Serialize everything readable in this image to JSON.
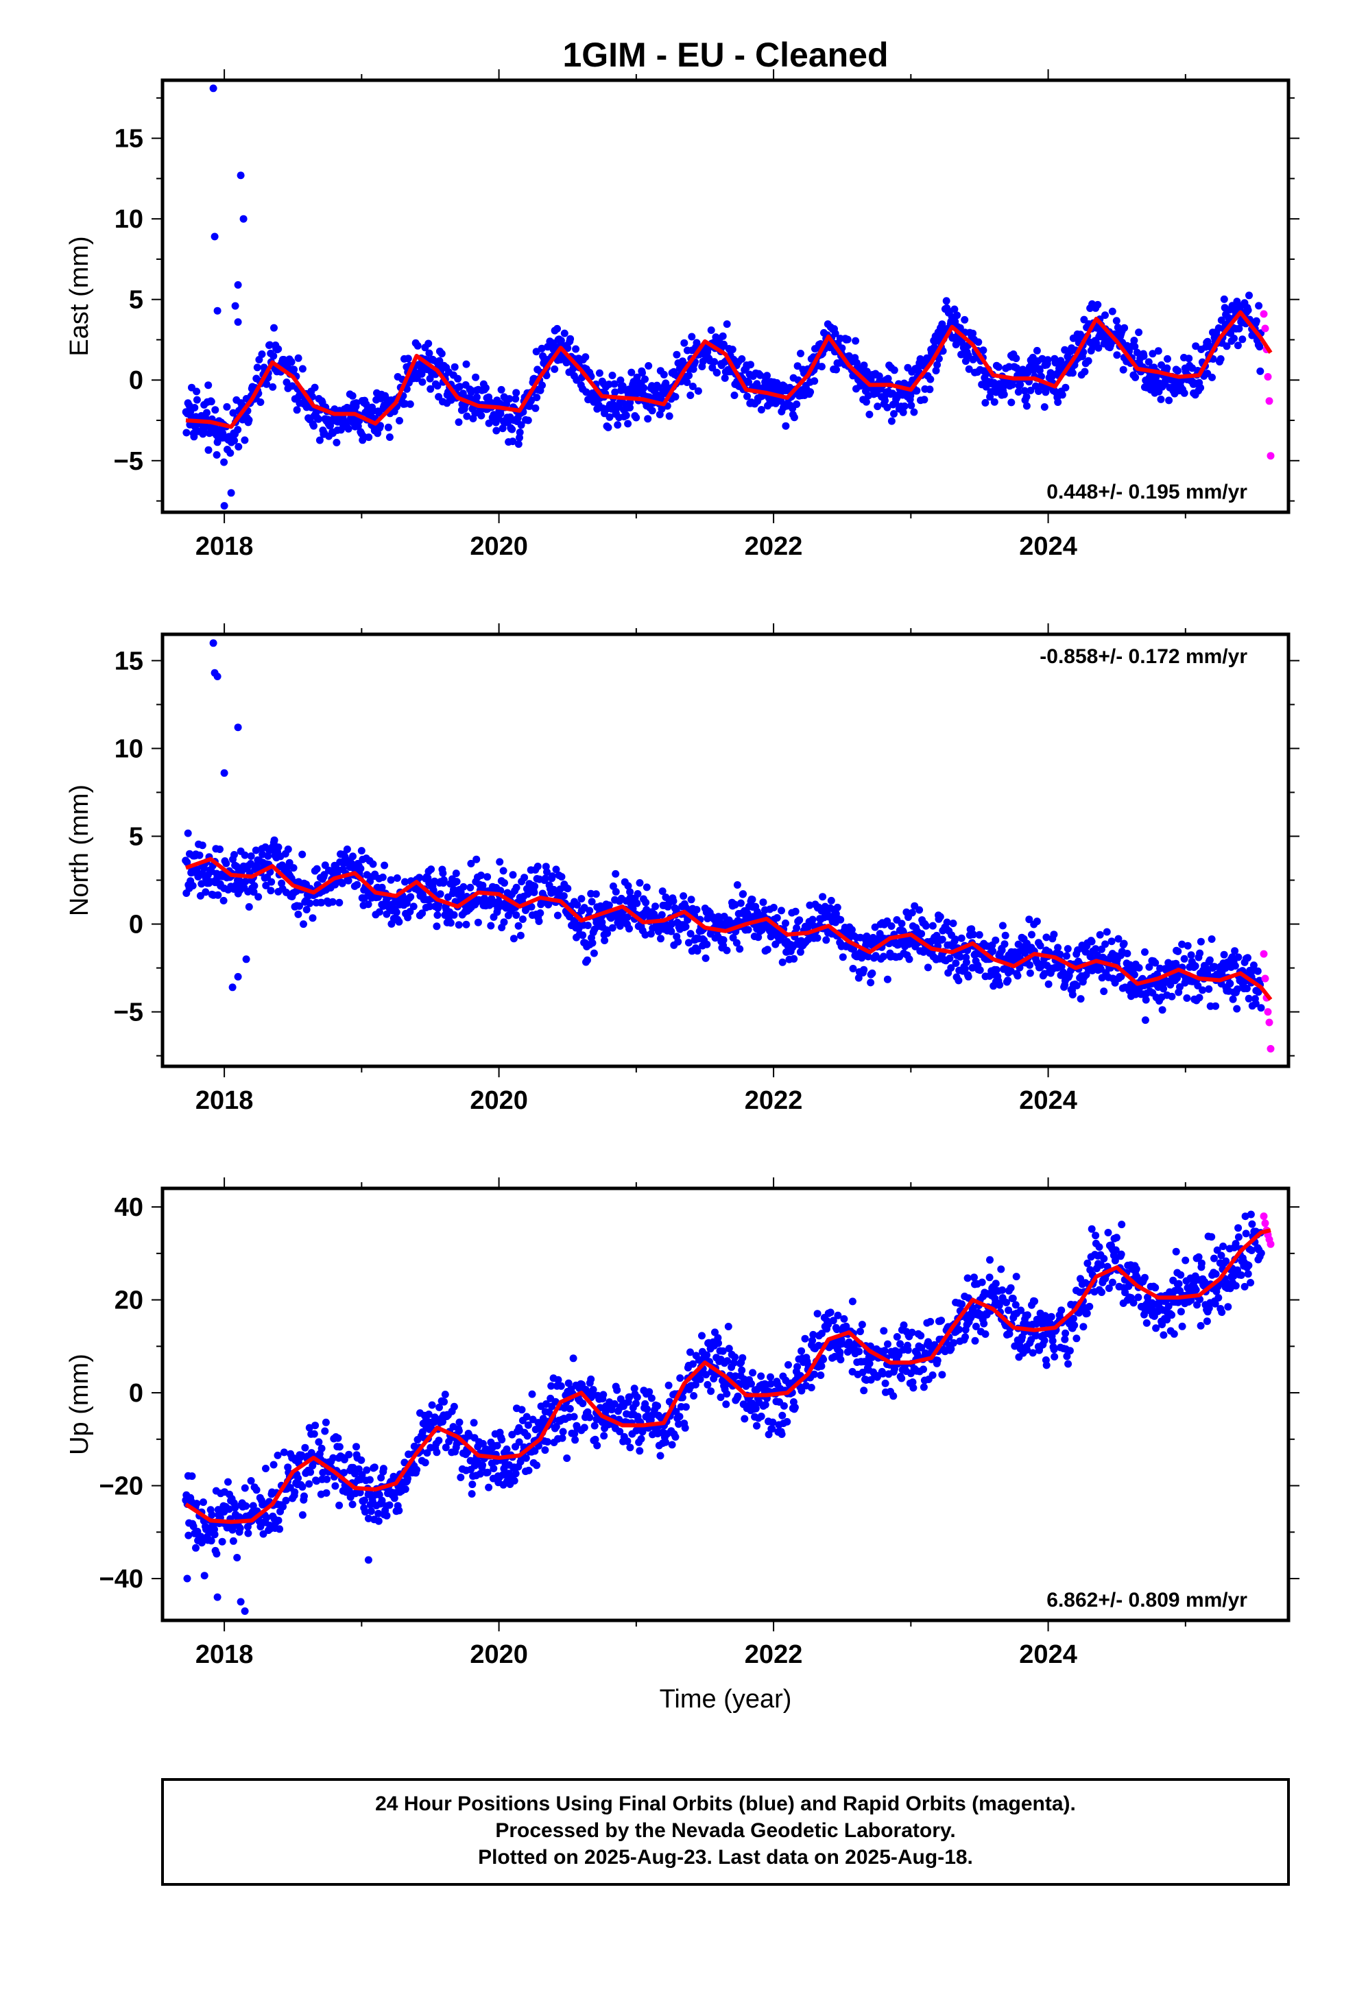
{
  "title": "1GIM  - EU - Cleaned",
  "xlabel": "Time (year)",
  "footer": [
    "24 Hour Positions Using Final Orbits (blue) and Rapid Orbits (magenta).",
    "Processed by the Nevada Geodetic Laboratory.",
    "Plotted on 2025-Aug-23. Last data on 2025-Aug-18."
  ],
  "colors": {
    "final": "#0000ff",
    "rapid": "#ff00ff",
    "fit": "#ff0000",
    "frame": "#000000"
  },
  "chart_data": [
    {
      "type": "scatter",
      "ylabel": "East (mm)",
      "rate_label": "0.448+/- 0.195 mm/yr",
      "rate_position": "bottom-right",
      "xlim": [
        2017.55,
        2025.75
      ],
      "ylim": [
        -8.2,
        18.6
      ],
      "x_ticks": [
        2018,
        2020,
        2022,
        2024
      ],
      "y_ticks": [
        -5,
        0,
        5,
        10,
        15
      ],
      "x_tick_labels": [
        "2018",
        "2020",
        "2022",
        "2024"
      ],
      "y_tick_labels": [
        "−5",
        "0",
        "5",
        "10",
        "15"
      ],
      "model_fit": {
        "name": "",
        "x": [
          2017.72,
          2017.9,
          2018.05,
          2018.2,
          2018.35,
          2018.5,
          2018.65,
          2018.8,
          2018.95,
          2019.1,
          2019.25,
          2019.4,
          2019.55,
          2019.7,
          2019.85,
          2020.0,
          2020.15,
          2020.3,
          2020.45,
          2020.6,
          2020.75,
          2020.9,
          2021.05,
          2021.2,
          2021.35,
          2021.5,
          2021.65,
          2021.8,
          2021.95,
          2022.1,
          2022.25,
          2022.4,
          2022.55,
          2022.7,
          2022.85,
          2023.0,
          2023.15,
          2023.3,
          2023.45,
          2023.6,
          2023.75,
          2023.9,
          2024.05,
          2024.2,
          2024.35,
          2024.5,
          2024.65,
          2024.8,
          2024.95,
          2025.1,
          2025.25,
          2025.4,
          2025.55,
          2025.62
        ],
        "y": [
          -2.5,
          -2.6,
          -2.9,
          -1.2,
          1.1,
          0.2,
          -1.6,
          -2.1,
          -2.1,
          -2.7,
          -1.4,
          1.5,
          0.6,
          -1.1,
          -1.6,
          -1.7,
          -1.9,
          0.2,
          2.0,
          0.6,
          -1.0,
          -1.1,
          -1.2,
          -1.5,
          0.6,
          2.4,
          1.6,
          -0.6,
          -0.8,
          -1.1,
          0.3,
          2.7,
          0.9,
          -0.3,
          -0.3,
          -0.6,
          1.1,
          3.3,
          2.2,
          0.3,
          0.1,
          0.1,
          -0.4,
          1.5,
          3.8,
          2.4,
          0.7,
          0.5,
          0.2,
          0.3,
          2.6,
          4.2,
          2.6,
          1.7
        ]
      },
      "final_orbits": {
        "name": "",
        "x_start": 2017.72,
        "x_end": 2025.55,
        "trend": 0.45,
        "seasonal_amplitude": 2.0,
        "scatter": 1.1,
        "point_count": 1600
      },
      "rapid_orbits": {
        "name": "",
        "x": [
          2025.57,
          2025.58,
          2025.59,
          2025.6,
          2025.61,
          2025.62
        ],
        "y": [
          4.1,
          3.2,
          1.9,
          0.2,
          -1.3,
          -4.7
        ]
      },
      "outliers": {
        "x": [
          2017.92,
          2017.93,
          2017.95,
          2018.0,
          2018.05,
          2018.12,
          2018.1,
          2018.14,
          2018.08,
          2018.1
        ],
        "y": [
          18.1,
          8.9,
          4.3,
          -7.8,
          -7.0,
          12.7,
          5.9,
          10.0,
          4.6,
          3.6
        ]
      }
    },
    {
      "type": "scatter",
      "ylabel": "North (mm)",
      "rate_label": "-0.858+/- 0.172 mm/yr",
      "rate_position": "top-right",
      "xlim": [
        2017.55,
        2025.75
      ],
      "ylim": [
        -8.1,
        16.5
      ],
      "x_ticks": [
        2018,
        2020,
        2022,
        2024
      ],
      "y_ticks": [
        -5,
        0,
        5,
        10,
        15
      ],
      "x_tick_labels": [
        "2018",
        "2020",
        "2022",
        "2024"
      ],
      "y_tick_labels": [
        "−5",
        "0",
        "5",
        "10",
        "15"
      ],
      "model_fit": {
        "name": "",
        "x": [
          2017.72,
          2017.9,
          2018.05,
          2018.2,
          2018.35,
          2018.5,
          2018.65,
          2018.8,
          2018.95,
          2019.1,
          2019.25,
          2019.4,
          2019.55,
          2019.7,
          2019.85,
          2020.0,
          2020.15,
          2020.3,
          2020.45,
          2020.6,
          2020.75,
          2020.9,
          2021.05,
          2021.2,
          2021.35,
          2021.5,
          2021.65,
          2021.8,
          2021.95,
          2022.1,
          2022.25,
          2022.4,
          2022.55,
          2022.7,
          2022.85,
          2023.0,
          2023.15,
          2023.3,
          2023.45,
          2023.6,
          2023.75,
          2023.9,
          2024.05,
          2024.2,
          2024.35,
          2024.5,
          2024.65,
          2024.8,
          2024.95,
          2025.1,
          2025.25,
          2025.4,
          2025.55,
          2025.62
        ],
        "y": [
          3.2,
          3.7,
          2.8,
          2.7,
          3.3,
          2.2,
          1.8,
          2.6,
          2.9,
          1.8,
          1.6,
          2.4,
          1.4,
          1.0,
          1.8,
          1.7,
          1.0,
          1.5,
          1.3,
          0.2,
          0.6,
          1.0,
          0.1,
          0.2,
          0.7,
          -0.2,
          -0.4,
          0.0,
          0.3,
          -0.6,
          -0.5,
          -0.1,
          -1.0,
          -1.6,
          -0.8,
          -0.6,
          -1.4,
          -1.6,
          -1.1,
          -2.0,
          -2.4,
          -1.7,
          -1.9,
          -2.5,
          -2.1,
          -2.4,
          -3.4,
          -3.1,
          -2.6,
          -3.1,
          -3.2,
          -2.8,
          -3.6,
          -4.3
        ]
      },
      "final_orbits": {
        "name": "",
        "x_start": 2017.72,
        "x_end": 2025.55,
        "trend": -0.86,
        "seasonal_amplitude": 0.6,
        "scatter": 1.1,
        "point_count": 1600
      },
      "rapid_orbits": {
        "name": "",
        "x": [
          2025.57,
          2025.58,
          2025.59,
          2025.6,
          2025.61,
          2025.62
        ],
        "y": [
          -1.7,
          -3.1,
          -4.2,
          -5.0,
          -5.6,
          -7.1
        ]
      },
      "outliers": {
        "x": [
          2017.92,
          2017.93,
          2017.95,
          2018.0,
          2018.1,
          2018.06,
          2018.1,
          2018.16
        ],
        "y": [
          16.0,
          14.3,
          14.1,
          8.6,
          11.2,
          -3.6,
          -3.0,
          -2.0
        ]
      }
    },
    {
      "type": "scatter",
      "ylabel": "Up (mm)",
      "rate_label": "6.862+/- 0.809 mm/yr",
      "rate_position": "bottom-right",
      "xlim": [
        2017.55,
        2025.75
      ],
      "ylim": [
        -49,
        44
      ],
      "x_ticks": [
        2018,
        2020,
        2022,
        2024
      ],
      "y_ticks": [
        -40,
        -20,
        0,
        20,
        40
      ],
      "x_tick_labels": [
        "2018",
        "2020",
        "2022",
        "2024"
      ],
      "y_tick_labels": [
        "−40",
        "−20",
        "0",
        "20",
        "40"
      ],
      "model_fit": {
        "name": "",
        "x": [
          2017.72,
          2017.9,
          2018.05,
          2018.2,
          2018.35,
          2018.5,
          2018.65,
          2018.8,
          2018.95,
          2019.1,
          2019.25,
          2019.4,
          2019.55,
          2019.7,
          2019.85,
          2020.0,
          2020.15,
          2020.3,
          2020.45,
          2020.6,
          2020.75,
          2020.9,
          2021.05,
          2021.2,
          2021.35,
          2021.5,
          2021.65,
          2021.8,
          2021.95,
          2022.1,
          2022.25,
          2022.4,
          2022.55,
          2022.7,
          2022.85,
          2023.0,
          2023.15,
          2023.3,
          2023.45,
          2023.6,
          2023.75,
          2023.9,
          2024.05,
          2024.2,
          2024.35,
          2024.5,
          2024.65,
          2024.8,
          2024.95,
          2025.1,
          2025.25,
          2025.4,
          2025.55,
          2025.62
        ],
        "y": [
          -24,
          -27.5,
          -27.8,
          -27.5,
          -24,
          -17,
          -14,
          -17,
          -20.5,
          -20.8,
          -19.5,
          -13,
          -7.5,
          -9.5,
          -13.5,
          -14,
          -13.5,
          -10,
          -2,
          0,
          -5,
          -7,
          -7,
          -6.5,
          2,
          6.5,
          3.5,
          -0.5,
          -0.5,
          0,
          4,
          11.5,
          13,
          9,
          6.5,
          6.5,
          7.5,
          14,
          20,
          18,
          14,
          13.5,
          14,
          18,
          25,
          27,
          23,
          20.5,
          20.5,
          21,
          24.5,
          30.5,
          34.5,
          35
        ]
      },
      "final_orbits": {
        "name": "",
        "x_start": 2017.72,
        "x_end": 2025.55,
        "trend": 6.86,
        "seasonal_amplitude": 3.5,
        "scatter": 5.2,
        "point_count": 1600
      },
      "rapid_orbits": {
        "name": "",
        "x": [
          2025.57,
          2025.58,
          2025.59,
          2025.6,
          2025.61,
          2025.62
        ],
        "y": [
          38,
          36.5,
          35,
          34,
          33,
          32
        ]
      },
      "outliers": {
        "x": [
          2017.73,
          2017.95,
          2018.15,
          2018.12,
          2019.05
        ],
        "y": [
          -40,
          -44,
          -47,
          -45,
          -36
        ]
      }
    }
  ]
}
